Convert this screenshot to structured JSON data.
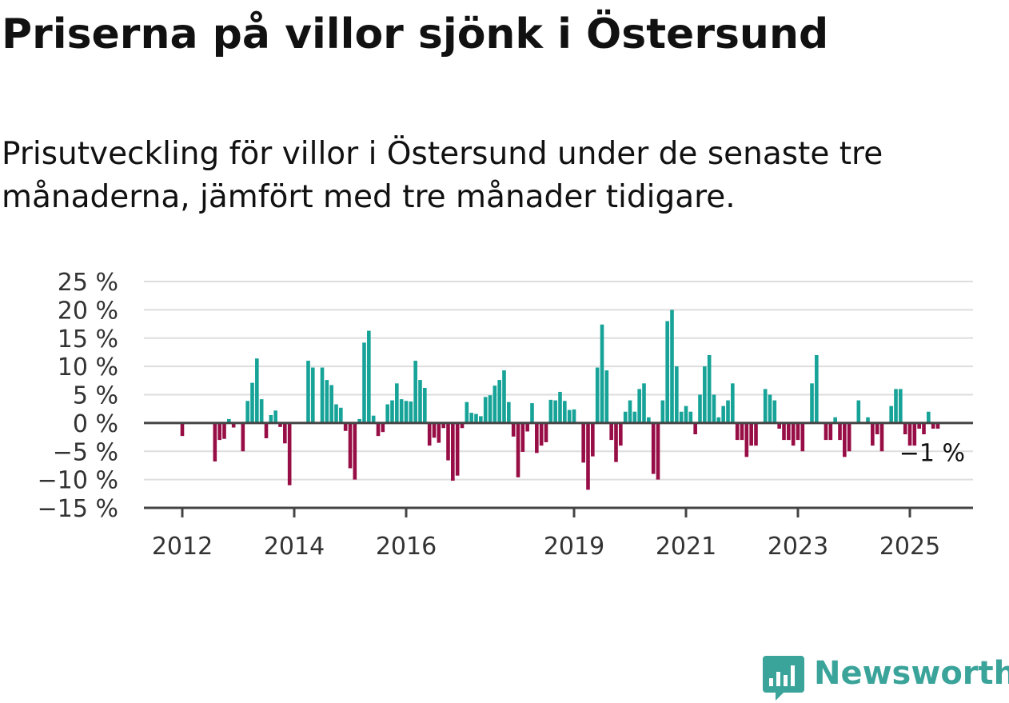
{
  "chart_data": {
    "type": "bar",
    "title": "Priserna på villor sjönk i Östersund",
    "subtitle": "Prisutveckling för villor i Östersund under de senaste tre månaderna, jämfört med tre månader tidigare.",
    "y_unit": "%",
    "ylim": [
      -15,
      25
    ],
    "y_ticks": [
      25,
      20,
      15,
      10,
      5,
      0,
      -5,
      -10,
      -15
    ],
    "y_tick_labels": [
      "25 %",
      "20 %",
      "15 %",
      "10 %",
      "5 %",
      "0 %",
      "−5 %",
      "−10 %",
      "−15 %"
    ],
    "x_ticks": [
      "2012",
      "2014",
      "2016",
      "2019",
      "2021",
      "2023",
      "2025"
    ],
    "grid": true,
    "positive_color": "#17a398",
    "negative_color": "#970d45",
    "x_start": "2012-01",
    "values": [
      -2.3,
      null,
      null,
      null,
      null,
      null,
      null,
      -6.8,
      -3.0,
      -2.8,
      0.7,
      -0.8,
      null,
      -5.0,
      3.9,
      7.1,
      11.4,
      4.2,
      -2.7,
      1.4,
      2.2,
      -0.7,
      -3.6,
      -11.0,
      null,
      null,
      null,
      11.0,
      9.8,
      null,
      9.8,
      7.6,
      6.7,
      3.3,
      2.7,
      -1.4,
      -8.0,
      -10.0,
      0.7,
      14.2,
      16.3,
      1.3,
      -2.3,
      -1.6,
      3.3,
      4.0,
      7.0,
      4.2,
      3.9,
      3.8,
      11.0,
      7.6,
      6.2,
      -4.0,
      -2.6,
      -3.5,
      -0.9,
      -6.6,
      -10.2,
      -9.3,
      -0.9,
      3.7,
      1.8,
      1.6,
      1.2,
      4.6,
      4.9,
      6.6,
      7.6,
      9.3,
      3.7,
      -2.4,
      -9.6,
      -5.1,
      -1.5,
      3.5,
      -5.3,
      -4.0,
      -3.4,
      4.1,
      4.0,
      5.5,
      3.9,
      2.3,
      2.4,
      null,
      -7.0,
      -11.8,
      -5.9,
      9.8,
      17.4,
      9.3,
      -3.0,
      -6.9,
      -4.0,
      2.0,
      4.0,
      2.0,
      6.0,
      7.0,
      1.0,
      -9.0,
      -10.0,
      4.0,
      18.0,
      20.0,
      10.0,
      2.0,
      3.0,
      2.0,
      -2.0,
      5.0,
      10.0,
      12.0,
      5.0,
      1.0,
      3.0,
      4.0,
      7.0,
      -3.0,
      -3.0,
      -6.0,
      -4.0,
      -4.0,
      null,
      6.0,
      5.0,
      4.0,
      -1.0,
      -3.0,
      -3.0,
      -4.0,
      -3.0,
      -5.0,
      null,
      7.0,
      12.0,
      null,
      -3.0,
      -3.0,
      1.0,
      -3.0,
      -6.0,
      -5.0,
      null,
      4.0,
      null,
      1.0,
      -4.0,
      -2.0,
      -5.0,
      null,
      3.0,
      6.0,
      6.0,
      -2.0,
      -4.0,
      -4.0,
      -1.0,
      -2.0,
      2.0,
      -1.0,
      -1.0
    ],
    "last_value_label": "−1 %"
  },
  "brand": {
    "name": "Newsworthy"
  }
}
